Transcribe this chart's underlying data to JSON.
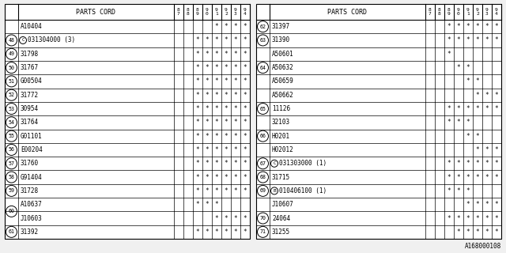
{
  "bg_color": "#f0f0f0",
  "table_bg": "#ffffff",
  "font_size": 5.5,
  "header_font_size": 6.0,
  "years": [
    "8\n7",
    "8\n8",
    "8\n9",
    "9\n0",
    "9\n1",
    "9\n2",
    "9\n3",
    "9\n4"
  ],
  "left_table": {
    "title": "PARTS CORD",
    "rows": [
      {
        "num": "",
        "prefix": "",
        "code": "A10404",
        "stars": [
          false,
          false,
          false,
          false,
          true,
          true,
          true,
          true
        ]
      },
      {
        "num": "48",
        "prefix": "C",
        "code": "031304000 (3)",
        "stars": [
          false,
          false,
          true,
          true,
          true,
          true,
          true,
          true
        ]
      },
      {
        "num": "49",
        "prefix": "",
        "code": "31798",
        "stars": [
          false,
          false,
          true,
          true,
          true,
          true,
          true,
          true
        ]
      },
      {
        "num": "50",
        "prefix": "",
        "code": "31767",
        "stars": [
          false,
          false,
          true,
          true,
          true,
          true,
          true,
          true
        ]
      },
      {
        "num": "51",
        "prefix": "",
        "code": "G00504",
        "stars": [
          false,
          false,
          true,
          true,
          true,
          true,
          true,
          true
        ]
      },
      {
        "num": "52",
        "prefix": "",
        "code": "31772",
        "stars": [
          false,
          false,
          true,
          true,
          true,
          true,
          true,
          true
        ]
      },
      {
        "num": "53",
        "prefix": "",
        "code": "30954",
        "stars": [
          false,
          false,
          true,
          true,
          true,
          true,
          true,
          true
        ]
      },
      {
        "num": "54",
        "prefix": "",
        "code": "31764",
        "stars": [
          false,
          false,
          true,
          true,
          true,
          true,
          true,
          true
        ]
      },
      {
        "num": "55",
        "prefix": "",
        "code": "G01101",
        "stars": [
          false,
          false,
          true,
          true,
          true,
          true,
          true,
          true
        ]
      },
      {
        "num": "56",
        "prefix": "",
        "code": "E00204",
        "stars": [
          false,
          false,
          true,
          true,
          true,
          true,
          true,
          true
        ]
      },
      {
        "num": "57",
        "prefix": "",
        "code": "31760",
        "stars": [
          false,
          false,
          true,
          true,
          true,
          true,
          true,
          true
        ]
      },
      {
        "num": "58",
        "prefix": "",
        "code": "G91404",
        "stars": [
          false,
          false,
          true,
          true,
          true,
          true,
          true,
          true
        ]
      },
      {
        "num": "59",
        "prefix": "",
        "code": "31728",
        "stars": [
          false,
          false,
          true,
          true,
          true,
          true,
          true,
          true
        ]
      },
      {
        "num": "60",
        "prefix": "",
        "code": "A10637",
        "stars": [
          false,
          false,
          true,
          true,
          true,
          false,
          false,
          false
        ]
      },
      {
        "num": "60",
        "prefix": "",
        "code": "J10603",
        "stars": [
          false,
          false,
          false,
          false,
          true,
          true,
          true,
          true
        ]
      },
      {
        "num": "61",
        "prefix": "",
        "code": "31392",
        "stars": [
          false,
          false,
          true,
          true,
          true,
          true,
          true,
          true
        ]
      }
    ]
  },
  "right_table": {
    "title": "PARTS CORD",
    "rows": [
      {
        "num": "62",
        "prefix": "",
        "code": "31397",
        "stars": [
          false,
          false,
          true,
          true,
          true,
          true,
          true,
          true
        ]
      },
      {
        "num": "63",
        "prefix": "",
        "code": "31390",
        "stars": [
          false,
          false,
          true,
          true,
          true,
          true,
          true,
          true
        ]
      },
      {
        "num": "",
        "prefix": "",
        "code": "A50601",
        "stars": [
          false,
          false,
          true,
          false,
          false,
          false,
          false,
          false
        ]
      },
      {
        "num": "64",
        "prefix": "",
        "code": "A50632",
        "stars": [
          false,
          false,
          false,
          true,
          true,
          false,
          false,
          false
        ]
      },
      {
        "num": "",
        "prefix": "",
        "code": "A50659",
        "stars": [
          false,
          false,
          false,
          false,
          true,
          true,
          false,
          false
        ]
      },
      {
        "num": "",
        "prefix": "",
        "code": "A50662",
        "stars": [
          false,
          false,
          false,
          false,
          false,
          true,
          true,
          true
        ]
      },
      {
        "num": "65",
        "prefix": "",
        "code": "11126",
        "stars": [
          false,
          false,
          true,
          true,
          true,
          true,
          true,
          true
        ]
      },
      {
        "num": "",
        "prefix": "",
        "code": "32103",
        "stars": [
          false,
          false,
          true,
          true,
          true,
          false,
          false,
          false
        ]
      },
      {
        "num": "66",
        "prefix": "",
        "code": "H0201",
        "stars": [
          false,
          false,
          false,
          false,
          true,
          true,
          false,
          false
        ]
      },
      {
        "num": "",
        "prefix": "",
        "code": "H02012",
        "stars": [
          false,
          false,
          false,
          false,
          false,
          true,
          true,
          true
        ]
      },
      {
        "num": "67",
        "prefix": "C",
        "code": "031303000 (1)",
        "stars": [
          false,
          false,
          true,
          true,
          true,
          true,
          true,
          true
        ]
      },
      {
        "num": "68",
        "prefix": "",
        "code": "31715",
        "stars": [
          false,
          false,
          true,
          true,
          true,
          true,
          true,
          true
        ]
      },
      {
        "num": "69",
        "prefix": "B",
        "code": "010406100 (1)",
        "stars": [
          false,
          false,
          true,
          true,
          true,
          false,
          false,
          false
        ]
      },
      {
        "num": "",
        "prefix": "",
        "code": "J10607",
        "stars": [
          false,
          false,
          false,
          false,
          true,
          true,
          true,
          true
        ]
      },
      {
        "num": "70",
        "prefix": "",
        "code": "24064",
        "stars": [
          false,
          false,
          true,
          true,
          true,
          true,
          true,
          true
        ]
      },
      {
        "num": "71",
        "prefix": "",
        "code": "31255",
        "stars": [
          false,
          false,
          false,
          true,
          true,
          true,
          true,
          true
        ]
      }
    ]
  },
  "footnote": "A168000108"
}
